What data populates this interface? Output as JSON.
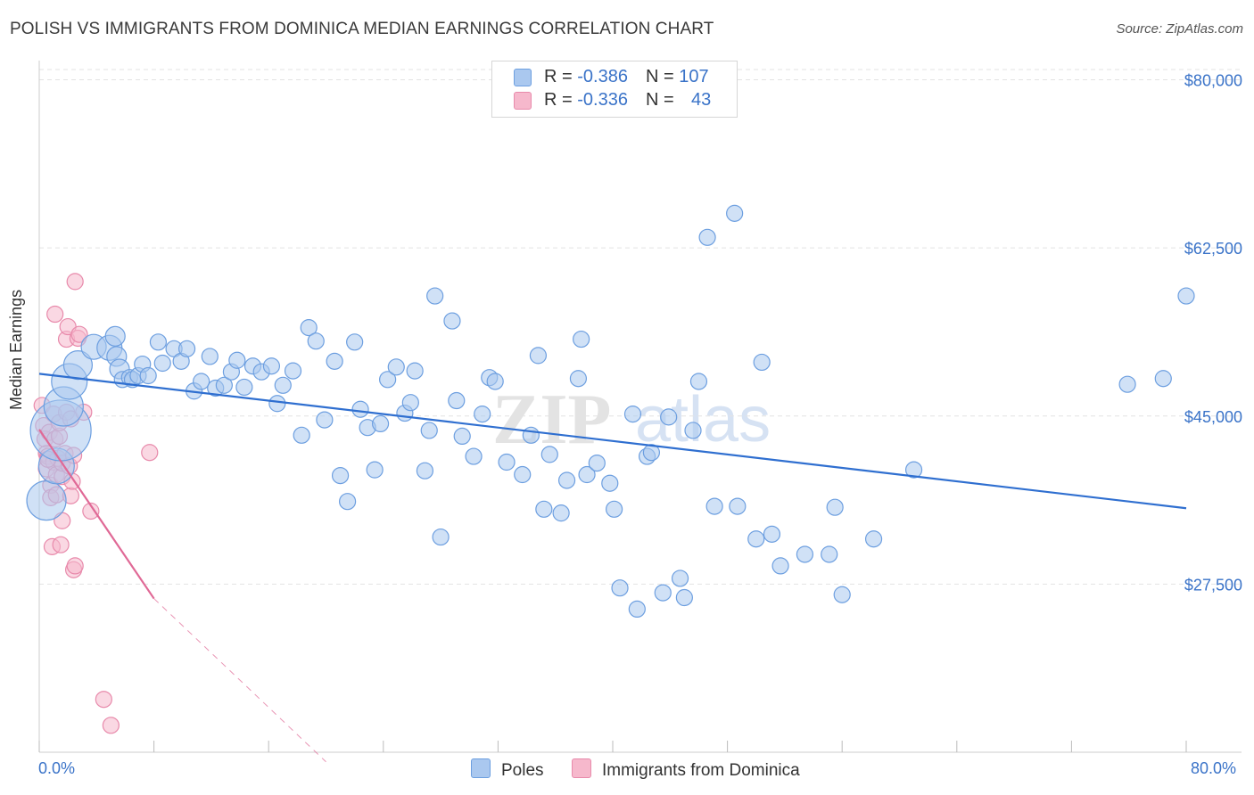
{
  "header": {
    "title": "POLISH VS IMMIGRANTS FROM DOMINICA MEDIAN EARNINGS CORRELATION CHART",
    "source": "Source: ZipAtlas.com"
  },
  "legend": {
    "rows": [
      {
        "r_label": "R = ",
        "r_value": "-0.386",
        "n_label": "N = ",
        "n_value": "107"
      },
      {
        "r_label": "R = ",
        "r_value": "-0.336",
        "n_label": "N = ",
        "n_value": "43"
      }
    ]
  },
  "watermark": {
    "zip": "ZIP",
    "atlas": "atlas"
  },
  "colors": {
    "poles_fill": "#aac8ef",
    "poles_stroke": "#6d9fe0",
    "poles_line": "#2f6fd0",
    "dominica_fill": "#f6b8cc",
    "dominica_stroke": "#e88aab",
    "dominica_line": "#e06996",
    "grid": "#e3e3e3",
    "axis_text": "#3a73c8"
  },
  "chart_data": {
    "type": "scatter",
    "xlabel": "",
    "ylabel": "Median Earnings",
    "xlim": [
      0,
      80
    ],
    "ylim": [
      10000,
      82000
    ],
    "x_tick_labels": [
      "0.0%",
      "80.0%"
    ],
    "y_ticks": [
      {
        "value": 80000,
        "label": "$80,000"
      },
      {
        "value": 62500,
        "label": "$62,500"
      },
      {
        "value": 45000,
        "label": "$45,000"
      },
      {
        "value": 27500,
        "label": "$27,500"
      }
    ],
    "legend_position": "top-center",
    "series": [
      {
        "name": "Poles",
        "r": -0.386,
        "n": 107,
        "trend": {
          "x": [
            0,
            80
          ],
          "y": [
            49400,
            35400
          ]
        },
        "points": [
          [
            0.5,
            36200,
            22
          ],
          [
            1.2,
            39800,
            20
          ],
          [
            1.5,
            43500,
            34
          ],
          [
            1.7,
            46000,
            22
          ],
          [
            2.1,
            48600,
            20
          ],
          [
            2.7,
            50300,
            16
          ],
          [
            3.8,
            52200,
            14
          ],
          [
            4.9,
            52100,
            14
          ],
          [
            5.3,
            53300,
            11
          ],
          [
            5.4,
            51200,
            11
          ],
          [
            5.6,
            49900,
            11
          ],
          [
            5.8,
            48800,
            9
          ],
          [
            6.3,
            49000,
            9
          ],
          [
            6.5,
            48800,
            9
          ],
          [
            6.9,
            49200,
            9
          ],
          [
            7.2,
            50400,
            9
          ],
          [
            7.6,
            49200,
            9
          ],
          [
            8.3,
            52700,
            9
          ],
          [
            8.6,
            50500,
            9
          ],
          [
            9.4,
            52000,
            9
          ],
          [
            9.9,
            50700,
            9
          ],
          [
            10.3,
            52000,
            9
          ],
          [
            10.8,
            47600,
            9
          ],
          [
            11.3,
            48600,
            9
          ],
          [
            11.9,
            51200,
            9
          ],
          [
            12.3,
            47900,
            9
          ],
          [
            12.9,
            48200,
            9
          ],
          [
            13.4,
            49600,
            9
          ],
          [
            13.8,
            50800,
            9
          ],
          [
            14.3,
            48000,
            9
          ],
          [
            14.9,
            50200,
            9
          ],
          [
            15.5,
            49600,
            9
          ],
          [
            16.2,
            50200,
            9
          ],
          [
            16.6,
            46300,
            9
          ],
          [
            17.0,
            48200,
            9
          ],
          [
            17.7,
            49700,
            9
          ],
          [
            18.3,
            43000,
            9
          ],
          [
            18.8,
            54200,
            9
          ],
          [
            19.3,
            52800,
            9
          ],
          [
            19.9,
            44600,
            9
          ],
          [
            20.6,
            50700,
            9
          ],
          [
            21.0,
            38800,
            9
          ],
          [
            21.5,
            36100,
            9
          ],
          [
            22.0,
            52700,
            9
          ],
          [
            22.4,
            45700,
            9
          ],
          [
            22.9,
            43800,
            9
          ],
          [
            23.4,
            39400,
            9
          ],
          [
            23.8,
            44200,
            9
          ],
          [
            24.3,
            48800,
            9
          ],
          [
            24.9,
            50100,
            9
          ],
          [
            25.5,
            45300,
            9
          ],
          [
            25.9,
            46400,
            9
          ],
          [
            26.2,
            49700,
            9
          ],
          [
            26.9,
            39300,
            9
          ],
          [
            27.2,
            43500,
            9
          ],
          [
            27.6,
            57500,
            9
          ],
          [
            28.0,
            32400,
            9
          ],
          [
            28.8,
            54900,
            9
          ],
          [
            29.1,
            46600,
            9
          ],
          [
            29.5,
            42900,
            9
          ],
          [
            30.3,
            40800,
            9
          ],
          [
            30.9,
            45200,
            9
          ],
          [
            31.4,
            49000,
            9
          ],
          [
            31.8,
            48600,
            9
          ],
          [
            32.6,
            40200,
            9
          ],
          [
            33.7,
            38900,
            9
          ],
          [
            34.3,
            43000,
            9
          ],
          [
            34.8,
            51300,
            9
          ],
          [
            35.2,
            35300,
            9
          ],
          [
            35.6,
            41000,
            9
          ],
          [
            36.4,
            34900,
            9
          ],
          [
            36.8,
            38300,
            9
          ],
          [
            37.6,
            48900,
            9
          ],
          [
            37.8,
            53000,
            9
          ],
          [
            38.2,
            38900,
            9
          ],
          [
            38.9,
            40100,
            9
          ],
          [
            39.8,
            38000,
            9
          ],
          [
            40.1,
            35300,
            9
          ],
          [
            40.5,
            27100,
            9
          ],
          [
            41.4,
            45200,
            9
          ],
          [
            41.7,
            24900,
            9
          ],
          [
            42.4,
            40800,
            9
          ],
          [
            42.7,
            41200,
            9
          ],
          [
            43.5,
            26600,
            9
          ],
          [
            43.9,
            44900,
            9
          ],
          [
            44.7,
            28100,
            9
          ],
          [
            45.0,
            26100,
            9
          ],
          [
            45.6,
            43500,
            9
          ],
          [
            46.0,
            48600,
            9
          ],
          [
            46.6,
            63600,
            9
          ],
          [
            47.1,
            35600,
            9
          ],
          [
            48.5,
            66100,
            9
          ],
          [
            48.7,
            35600,
            9
          ],
          [
            50.0,
            32200,
            9
          ],
          [
            50.4,
            50600,
            9
          ],
          [
            51.1,
            32700,
            9
          ],
          [
            51.7,
            29400,
            9
          ],
          [
            53.4,
            30600,
            9
          ],
          [
            55.1,
            30600,
            9
          ],
          [
            55.5,
            35500,
            9
          ],
          [
            56.0,
            26400,
            9
          ],
          [
            58.2,
            32200,
            9
          ],
          [
            61.0,
            39400,
            9
          ],
          [
            75.9,
            48300,
            9
          ],
          [
            78.4,
            48900,
            9
          ],
          [
            80.0,
            57500,
            9
          ]
        ]
      },
      {
        "name": "Immigrants from Dominica",
        "r": -0.336,
        "n": 43,
        "trend": {
          "x": [
            0,
            8
          ],
          "y": [
            43600,
            26000
          ]
        },
        "trend_dashed": {
          "x": [
            8,
            20
          ],
          "y": [
            26000,
            9000
          ]
        },
        "points": [
          [
            0.2,
            46100,
            9
          ],
          [
            0.3,
            44000,
            9
          ],
          [
            0.4,
            42600,
            9
          ],
          [
            0.5,
            41100,
            9
          ],
          [
            0.5,
            39500,
            9
          ],
          [
            0.6,
            40800,
            9
          ],
          [
            0.7,
            43300,
            9
          ],
          [
            0.8,
            37800,
            9
          ],
          [
            0.8,
            36500,
            9
          ],
          [
            0.9,
            31400,
            9
          ],
          [
            1.0,
            40200,
            9
          ],
          [
            1.0,
            45200,
            9
          ],
          [
            1.1,
            42600,
            9
          ],
          [
            1.1,
            55600,
            9
          ],
          [
            1.2,
            38900,
            9
          ],
          [
            1.2,
            36800,
            9
          ],
          [
            1.3,
            40600,
            9
          ],
          [
            1.4,
            42900,
            9
          ],
          [
            1.4,
            44300,
            9
          ],
          [
            1.5,
            31600,
            9
          ],
          [
            1.6,
            38700,
            9
          ],
          [
            1.6,
            40100,
            9
          ],
          [
            1.6,
            34100,
            9
          ],
          [
            1.8,
            41100,
            9
          ],
          [
            1.9,
            45400,
            9
          ],
          [
            1.9,
            53000,
            9
          ],
          [
            2.0,
            54300,
            9
          ],
          [
            2.1,
            39800,
            9
          ],
          [
            2.2,
            36700,
            9
          ],
          [
            2.2,
            44700,
            9
          ],
          [
            2.3,
            38200,
            9
          ],
          [
            2.4,
            40900,
            9
          ],
          [
            2.4,
            29000,
            9
          ],
          [
            2.5,
            29400,
            9
          ],
          [
            2.5,
            59000,
            9
          ],
          [
            2.7,
            53100,
            9
          ],
          [
            2.8,
            53500,
            9
          ],
          [
            3.1,
            45400,
            9
          ],
          [
            3.6,
            35100,
            9
          ],
          [
            4.5,
            15500,
            9
          ],
          [
            5.0,
            12800,
            9
          ],
          [
            7.7,
            41200,
            9
          ],
          [
            0.6,
            40500,
            9
          ]
        ]
      }
    ]
  },
  "bottom_legend": {
    "items": [
      "Poles",
      "Immigrants from Dominica"
    ]
  }
}
